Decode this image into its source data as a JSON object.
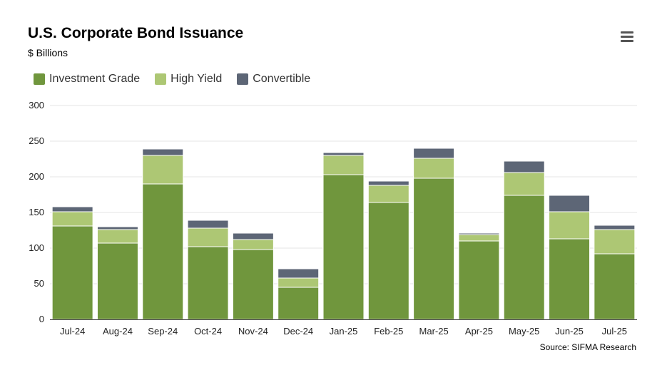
{
  "header": {
    "title": "U.S. Corporate Bond Issuance",
    "subtitle": "$ Billions",
    "menu_icon": "hamburger-menu-icon"
  },
  "legend": [
    {
      "label": "Investment Grade",
      "color": "#70963d"
    },
    {
      "label": "High Yield",
      "color": "#adc774"
    },
    {
      "label": "Convertible",
      "color": "#5d6676"
    }
  ],
  "source": "Source: SIFMA Research",
  "chart_data": {
    "type": "bar",
    "stacked": true,
    "categories": [
      "Jul-24",
      "Aug-24",
      "Sep-24",
      "Oct-24",
      "Nov-24",
      "Dec-24",
      "Jan-25",
      "Feb-25",
      "Mar-25",
      "Apr-25",
      "May-25",
      "Jun-25",
      "Jul-25"
    ],
    "series": [
      {
        "name": "Investment Grade",
        "color": "#70963d",
        "values": [
          131,
          107,
          190,
          102,
          98,
          45,
          203,
          164,
          198,
          110,
          174,
          113,
          92
        ]
      },
      {
        "name": "High Yield",
        "color": "#adc774",
        "values": [
          20,
          19,
          40,
          26,
          14,
          13,
          27,
          24,
          28,
          9,
          32,
          38,
          34
        ]
      },
      {
        "name": "Convertible",
        "color": "#5d6676",
        "values": [
          7,
          4,
          9,
          11,
          9,
          13,
          4,
          6,
          14,
          2,
          16,
          23,
          6
        ]
      }
    ],
    "yticks": [
      0,
      50,
      100,
      150,
      200,
      250,
      300
    ],
    "ylim": [
      0,
      300
    ],
    "grid": true,
    "legend_position": "top-left"
  }
}
